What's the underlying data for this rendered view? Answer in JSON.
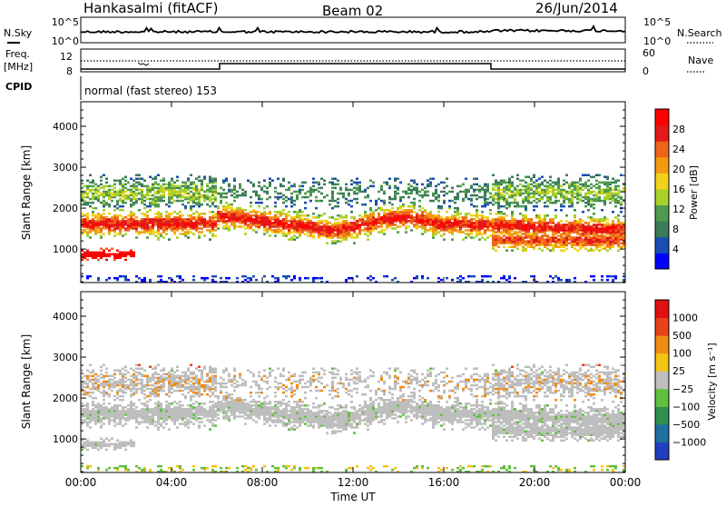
{
  "header": {
    "station": "Hankasalmi (fitACF)",
    "beam": "Beam 02",
    "date": "26/Jun/2014"
  },
  "aux_panels": {
    "nsky_label": "N.Sky",
    "nsearch_label": "N.Search",
    "noise_ticks_left": [
      "10^5",
      "10^0"
    ],
    "noise_ticks_right": [
      "10^5",
      "10^0"
    ],
    "freq_label": "Freq.",
    "freq_unit": "[MHz]",
    "freq_ticks": [
      "12",
      "8"
    ],
    "nave_label": "Nave",
    "nave_ticks": [
      "60",
      "0"
    ],
    "cpid_label": "CPID",
    "cpid_value": "normal (fast stereo) 153"
  },
  "chart_data": [
    {
      "type": "heatmap",
      "panel": "power",
      "ylabel": "Slant Range [km]",
      "ylim": [
        180,
        4600
      ],
      "yticks": [
        "1000",
        "2000",
        "3000",
        "4000"
      ],
      "colorbar": {
        "label": "Power [dB]",
        "ticks": [
          "28",
          "24",
          "20",
          "16",
          "12",
          "8",
          "4"
        ],
        "range": [
          0,
          30
        ],
        "colors": [
          "#0000ff",
          "#1a4db3",
          "#3c7b5a",
          "#4f9a4f",
          "#a8d12a",
          "#f2d21a",
          "#f29b12",
          "#f0641a",
          "#e41a1a",
          "#ff0000"
        ]
      }
    },
    {
      "type": "heatmap",
      "panel": "velocity",
      "ylabel": "Slant Range [km]",
      "ylim": [
        180,
        4600
      ],
      "yticks": [
        "1000",
        "2000",
        "3000",
        "4000"
      ],
      "colorbar": {
        "label": "Velocity [m s⁻¹]",
        "ticks": [
          "1000",
          "500",
          "100",
          "25",
          "−25",
          "−100",
          "−500",
          "−1000"
        ],
        "colors": [
          "#1f3fbf",
          "#1f6f9f",
          "#2f8f4f",
          "#5fbf3f",
          "#bebebe",
          "#f5c312",
          "#f08c12",
          "#e8421a",
          "#e01010"
        ]
      }
    }
  ],
  "xaxis": {
    "ticks": [
      "00:00",
      "04:00",
      "08:00",
      "12:00",
      "16:00",
      "20:00",
      "00:00"
    ],
    "label": "Time UT"
  }
}
